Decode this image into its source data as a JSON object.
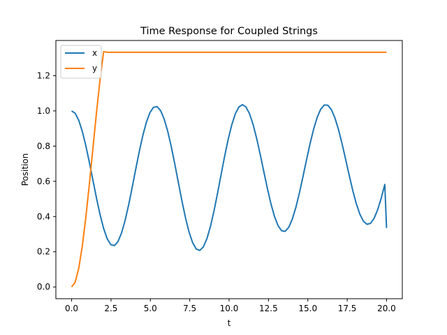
{
  "chart_data": {
    "type": "line",
    "title": "Time Response for Coupled Strings",
    "xlabel": "t",
    "ylabel": "Position",
    "xlim": [
      -1.0,
      21.0
    ],
    "ylim": [
      -0.0667,
      1.4
    ],
    "xticks": [
      0.0,
      2.5,
      5.0,
      7.5,
      10.0,
      12.5,
      15.0,
      17.5,
      20.0
    ],
    "xtick_labels": [
      "0.0",
      "2.5",
      "5.0",
      "7.5",
      "10.0",
      "12.5",
      "15.0",
      "17.5",
      "20.0"
    ],
    "yticks": [
      0.0,
      0.2,
      0.4,
      0.6,
      0.8,
      1.0,
      1.2
    ],
    "ytick_labels": [
      "0.0",
      "0.2",
      "0.4",
      "0.6",
      "0.8",
      "1.0",
      "1.2"
    ],
    "grid": false,
    "legend_position": "top-left",
    "x": [
      0.0,
      0.226,
      0.452,
      0.678,
      0.904,
      1.13,
      1.356,
      1.582,
      1.808,
      2.034,
      2.26,
      2.486,
      2.712,
      2.938,
      3.164,
      3.39,
      3.616,
      3.842,
      4.068,
      4.294,
      4.52,
      4.746,
      4.972,
      5.198,
      5.424,
      5.65,
      5.876,
      6.102,
      6.328,
      6.554,
      6.78,
      7.006,
      7.232,
      7.458,
      7.684,
      7.91,
      8.136,
      8.362,
      8.588,
      8.814,
      9.04,
      9.266,
      9.492,
      9.718,
      9.944,
      10.17,
      10.396,
      10.622,
      10.848,
      11.074,
      11.3,
      11.526,
      11.752,
      11.978,
      12.204,
      12.43,
      12.656,
      12.882,
      13.108,
      13.334,
      13.56,
      13.786,
      14.012,
      14.238,
      14.464,
      14.69,
      14.916,
      15.142,
      15.368,
      15.594,
      15.82,
      16.046,
      16.272,
      16.498,
      16.724,
      16.95,
      17.176,
      17.402,
      17.628,
      17.854,
      18.08,
      18.306,
      18.532,
      18.758,
      18.984,
      19.21,
      19.436,
      19.662,
      19.888,
      20.0
    ],
    "series": [
      {
        "name": "x",
        "color": "#1f77b4",
        "values": [
          1.0,
          0.9866,
          0.947,
          0.8839,
          0.8018,
          0.7066,
          0.6048,
          0.5036,
          0.4103,
          0.3317,
          0.2736,
          0.2405,
          0.2348,
          0.2568,
          0.305,
          0.3757,
          0.4639,
          0.5634,
          0.6672,
          0.7683,
          0.8597,
          0.9352,
          0.9899,
          1.0202,
          1.0242,
          1.0017,
          0.9541,
          0.8845,
          0.7972,
          0.6977,
          0.5924,
          0.4885,
          0.3929,
          0.3121,
          0.2517,
          0.216,
          0.2075,
          0.227,
          0.2733,
          0.3429,
          0.4311,
          0.5318,
          0.6379,
          0.7426,
          0.8391,
          0.9211,
          0.9836,
          1.0224,
          1.0355,
          1.0222,
          0.9835,
          0.9224,
          0.8434,
          0.7522,
          0.6555,
          0.5602,
          0.4732,
          0.4009,
          0.3484,
          0.3194,
          0.316,
          0.3383,
          0.3845,
          0.4512,
          0.5336,
          0.6259,
          0.7215,
          0.8139,
          0.8963,
          0.9632,
          1.0099,
          1.0333,
          1.0322,
          1.0069,
          0.9594,
          0.8932,
          0.8131,
          0.7247,
          0.6343,
          0.5484,
          0.4731,
          0.4134,
          0.3735,
          0.3559,
          0.3615,
          0.3899,
          0.4388,
          0.5045,
          0.5823,
          0.3349
        ]
      },
      {
        "name": "y",
        "color": "#ff7f0e",
        "values": [
          0.0,
          0.0268,
          0.106,
          0.2322,
          0.3964,
          0.5868,
          0.7904,
          0.9928,
          1.1794,
          1.3366,
          1.3333,
          1.3333,
          1.3333,
          1.3333,
          1.3333,
          1.3333,
          1.3333,
          1.3333,
          1.3333,
          1.3333,
          1.3333,
          1.3333,
          1.3333,
          1.3333,
          1.3333,
          1.3333,
          1.3333,
          1.3333,
          1.3333,
          1.3333,
          1.3333,
          1.3333,
          1.3333,
          1.3333,
          1.3333,
          1.3333,
          1.3333,
          1.3333,
          1.3333,
          1.3333,
          1.3333,
          1.3333,
          1.3333,
          1.3333,
          1.3333,
          1.3333,
          1.3333,
          1.3333,
          1.3333,
          1.3333,
          1.3333,
          1.3333,
          1.3333,
          1.3333,
          1.3333,
          1.3333,
          1.3333,
          1.3333,
          1.3333,
          1.3333,
          1.3333,
          1.3333,
          1.3333,
          1.3333,
          1.3333,
          1.3333,
          1.3333,
          1.3333,
          1.3333,
          1.3333,
          1.3333,
          1.3333,
          1.3333,
          1.3333,
          1.3333,
          1.3333,
          1.3333,
          1.3333,
          1.3333,
          1.3333,
          1.3333,
          1.3333,
          1.3333,
          1.3333,
          1.3333,
          1.3333,
          1.3333,
          1.3333,
          1.3333,
          1.3333
        ]
      }
    ]
  }
}
